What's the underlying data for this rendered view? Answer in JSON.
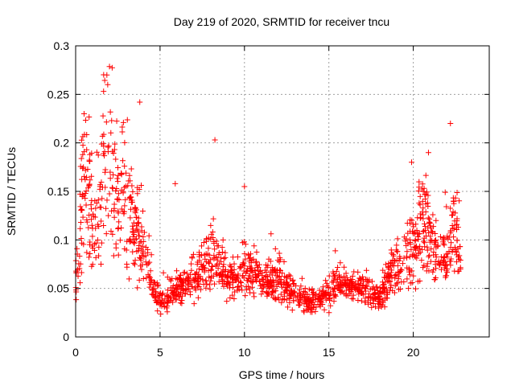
{
  "chart_data": {
    "type": "scatter",
    "title": "Day 219 of 2020, SRMTID for receiver tncu",
    "xlabel": "GPS time / hours",
    "ylabel": "SRMTID / TECUs",
    "xlim": [
      0,
      24.5
    ],
    "ylim": [
      0,
      0.3
    ],
    "xticks": [
      0,
      5,
      10,
      15,
      20
    ],
    "xtick_labels": [
      "0",
      "5",
      "10",
      "15",
      "20"
    ],
    "yticks": [
      0,
      0.05,
      0.1,
      0.15,
      0.2,
      0.25,
      0.3
    ],
    "ytick_labels": [
      "0",
      "0.05",
      "0.1",
      "0.15",
      "0.2",
      "0.25",
      "0.3"
    ],
    "grid": true,
    "marker": "+",
    "color": "#ff0000",
    "series": [
      {
        "name": "SRMTID",
        "trend": [
          [
            0.0,
            0.055
          ],
          [
            0.2,
            0.085
          ],
          [
            0.4,
            0.14
          ],
          [
            0.6,
            0.16
          ],
          [
            0.8,
            0.15
          ],
          [
            1.0,
            0.12
          ],
          [
            1.3,
            0.13
          ],
          [
            1.6,
            0.17
          ],
          [
            1.8,
            0.2
          ],
          [
            2.0,
            0.19
          ],
          [
            2.3,
            0.155
          ],
          [
            2.6,
            0.14
          ],
          [
            3.0,
            0.145
          ],
          [
            3.3,
            0.125
          ],
          [
            3.6,
            0.115
          ],
          [
            3.9,
            0.095
          ],
          [
            4.2,
            0.075
          ],
          [
            4.5,
            0.05
          ],
          [
            4.8,
            0.04
          ],
          [
            5.2,
            0.038
          ],
          [
            5.6,
            0.042
          ],
          [
            6.0,
            0.05
          ],
          [
            6.5,
            0.055
          ],
          [
            7.0,
            0.06
          ],
          [
            7.5,
            0.068
          ],
          [
            8.0,
            0.075
          ],
          [
            8.3,
            0.08
          ],
          [
            8.6,
            0.07
          ],
          [
            9.0,
            0.06
          ],
          [
            9.5,
            0.065
          ],
          [
            10.0,
            0.07
          ],
          [
            10.5,
            0.065
          ],
          [
            11.0,
            0.06
          ],
          [
            11.5,
            0.058
          ],
          [
            12.0,
            0.06
          ],
          [
            12.5,
            0.05
          ],
          [
            13.0,
            0.042
          ],
          [
            13.5,
            0.038
          ],
          [
            14.0,
            0.035
          ],
          [
            14.5,
            0.04
          ],
          [
            15.0,
            0.045
          ],
          [
            15.5,
            0.055
          ],
          [
            16.0,
            0.055
          ],
          [
            16.5,
            0.052
          ],
          [
            17.0,
            0.05
          ],
          [
            17.5,
            0.045
          ],
          [
            18.0,
            0.04
          ],
          [
            18.3,
            0.05
          ],
          [
            18.7,
            0.068
          ],
          [
            19.2,
            0.075
          ],
          [
            19.6,
            0.085
          ],
          [
            20.0,
            0.1
          ],
          [
            20.3,
            0.11
          ],
          [
            20.7,
            0.11
          ],
          [
            21.0,
            0.105
          ],
          [
            21.4,
            0.085
          ],
          [
            21.8,
            0.08
          ],
          [
            22.2,
            0.1
          ],
          [
            22.5,
            0.12
          ],
          [
            22.8,
            0.07
          ]
        ],
        "peaks": [
          [
            0.5,
            0.23
          ],
          [
            1.85,
            0.27
          ],
          [
            1.9,
            0.26
          ],
          [
            3.8,
            0.242
          ],
          [
            8.25,
            0.203
          ],
          [
            5.9,
            0.158
          ],
          [
            10.0,
            0.155
          ],
          [
            20.9,
            0.19
          ],
          [
            22.2,
            0.22
          ],
          [
            19.9,
            0.18
          ]
        ],
        "n_points": 1600,
        "x_range": [
          0.0,
          22.8
        ]
      }
    ]
  }
}
